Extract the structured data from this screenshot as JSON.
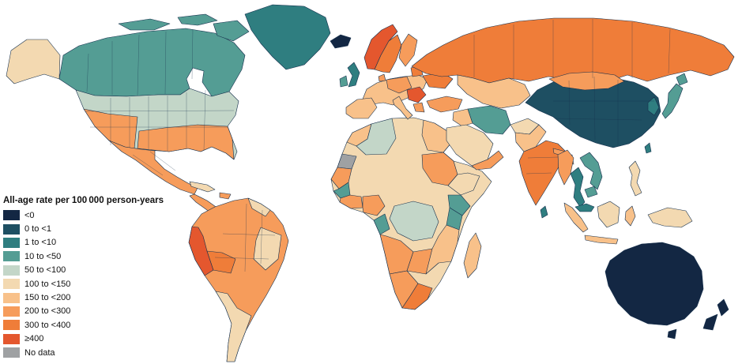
{
  "legend": {
    "title": "All-age rate per 100 000 person-years",
    "items": [
      {
        "label": "<0",
        "color": "#132743"
      },
      {
        "label": "0 to <1",
        "color": "#1e4f62"
      },
      {
        "label": "1 to <10",
        "color": "#2f7e80"
      },
      {
        "label": "10 to <50",
        "color": "#549d94"
      },
      {
        "label": "50 to <100",
        "color": "#c3d6c8"
      },
      {
        "label": "100 to <150",
        "color": "#f3d9b1"
      },
      {
        "label": "150 to <200",
        "color": "#f8c18a"
      },
      {
        "label": "200 to <300",
        "color": "#f69c5b"
      },
      {
        "label": "300 to <400",
        "color": "#ef7d39"
      },
      {
        "label": "≥400",
        "color": "#e4572e"
      },
      {
        "label": "No data",
        "color": "#9fa1a3"
      }
    ]
  },
  "map": {
    "border_color": "#16304d",
    "ocean_color": "#ffffff",
    "region_bands": {
      "greenland": 2,
      "arctic-islands-west": 3,
      "arctic-islands-mid": 3,
      "baffin-island": 3,
      "canada": 3,
      "alaska": 5,
      "usa": 4,
      "usa-southwest": 7,
      "usa-south": 7,
      "mexico": 7,
      "central-america": 7,
      "cuba": 5,
      "hispaniola": 7,
      "south-america": 7,
      "peru": 9,
      "bolivia": 8,
      "argentina": 5,
      "brazil-east": 5,
      "guyanas": 5,
      "iceland": 0,
      "united-kingdom": 2,
      "ireland": 3,
      "norway": 9,
      "sweden": 8,
      "finland": 7,
      "denmark": 7,
      "baltics": 8,
      "europe-central": 6,
      "iberia": 6,
      "germany-poland": 7,
      "balkans": 9,
      "italy": 6,
      "greece": 7,
      "ukraine": 8,
      "russia": 8,
      "kazakhstan": 6,
      "turkey": 7,
      "iraq": 6,
      "iran": 3,
      "saudi-arabia": 5,
      "yemen-oman": 7,
      "afghanistan": 5,
      "pakistan": 6,
      "india": 8,
      "nepal": 7,
      "bangladesh": 6,
      "sri-lanka": 2,
      "china": 1,
      "mongolia": 7,
      "korea": 2,
      "japan": 3,
      "japan-north": 3,
      "taiwan": 2,
      "myanmar": 7,
      "thailand": 2,
      "vietnam-laos": 3,
      "cambodia": 3,
      "malaysia": 2,
      "sumatra": 6,
      "java": 6,
      "borneo": 5,
      "sulawesi": 6,
      "philippines": 5,
      "new-guinea": 5,
      "australia": 0,
      "tasmania": 0,
      "new-zealand-north": 0,
      "new-zealand-south": 0,
      "africa": 5,
      "morocco": 6,
      "algeria": 4,
      "egypt": 6,
      "western-sahara": 10,
      "senegal-guinea": 7,
      "sierra-leone-liberia": 3,
      "ghana-ivory-coast": 7,
      "nigeria": 7,
      "sudan": 7,
      "ethiopia": 5,
      "kenya-uganda": 3,
      "tanzania": 3,
      "drc": 4,
      "congo-gabon": 3,
      "angola": 7,
      "zambia-zimbabwe": 7,
      "mozambique": 6,
      "namibia-botswana": 7,
      "south-africa": 8,
      "madagascar": 6
    }
  }
}
